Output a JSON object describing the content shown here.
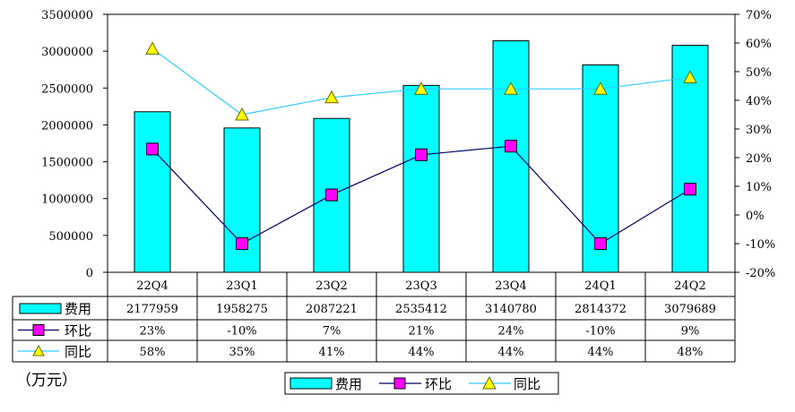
{
  "unit_label": "（万元）",
  "chart_data": {
    "type": "bar",
    "categories": [
      "22Q4",
      "23Q1",
      "23Q2",
      "23Q3",
      "23Q4",
      "24Q1",
      "24Q2"
    ],
    "series": [
      {
        "name": "费用",
        "kind": "bar",
        "axis": "left",
        "color": "#00FFFF",
        "values": [
          2177959,
          1958275,
          2087221,
          2535412,
          3140780,
          2814372,
          3079689
        ],
        "table_labels": [
          "2177959",
          "1958275",
          "2087221",
          "2535412",
          "3140780",
          "2814372",
          "3079689"
        ]
      },
      {
        "name": "环比",
        "kind": "line",
        "axis": "right",
        "line_color": "#000066",
        "marker": "square",
        "marker_color": "#FF00FF",
        "values": [
          23,
          -10,
          7,
          21,
          24,
          -10,
          9
        ],
        "table_labels": [
          "23%",
          "-10%",
          "7%",
          "21%",
          "24%",
          "-10%",
          "9%"
        ]
      },
      {
        "name": "同比",
        "kind": "line",
        "axis": "right",
        "line_color": "#33CCFF",
        "marker": "triangle",
        "marker_color": "#FFFF00",
        "values": [
          58,
          35,
          41,
          44,
          44,
          44,
          48
        ],
        "table_labels": [
          "58%",
          "35%",
          "41%",
          "44%",
          "44%",
          "44%",
          "48%"
        ]
      }
    ],
    "y_left": {
      "ylim": [
        0,
        3500000
      ],
      "ticks": [
        0,
        500000,
        1000000,
        1500000,
        2000000,
        2500000,
        3000000,
        3500000
      ],
      "tick_labels": [
        "0",
        "500000",
        "1000000",
        "1500000",
        "2000000",
        "2500000",
        "3000000",
        "3500000"
      ]
    },
    "y_right": {
      "ylim": [
        -20,
        70
      ],
      "ticks": [
        -20,
        -10,
        0,
        10,
        20,
        30,
        40,
        50,
        60,
        70
      ],
      "tick_labels": [
        "-20%",
        "-10%",
        "0%",
        "10%",
        "20%",
        "30%",
        "40%",
        "50%",
        "60%",
        "70%"
      ]
    },
    "grid": false,
    "legend": "bottom",
    "data_table": true
  }
}
